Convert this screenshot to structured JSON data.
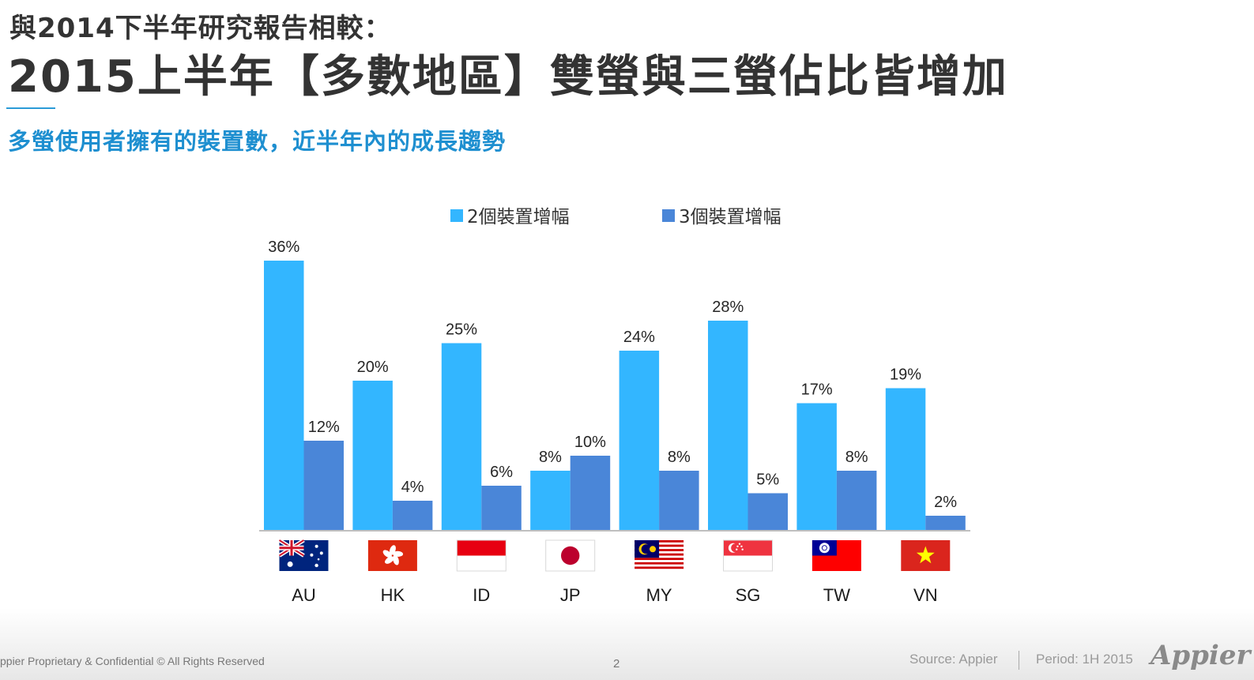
{
  "header": {
    "pre_title": "與2014下半年研究報告相較：",
    "main_title": "2015上半年【多數地區】雙螢與三螢佔比皆增加",
    "subtitle": "多螢使用者擁有的裝置數，近半年內的成長趨勢"
  },
  "chart_data": {
    "type": "bar",
    "categories": [
      "AU",
      "HK",
      "ID",
      "JP",
      "MY",
      "SG",
      "TW",
      "VN"
    ],
    "series": [
      {
        "name": "2個裝置增幅",
        "color": "#33b6ff",
        "values": [
          36,
          20,
          25,
          8,
          24,
          28,
          17,
          19
        ]
      },
      {
        "name": "3個裝置增幅",
        "color": "#4a86d8",
        "values": [
          12,
          4,
          6,
          10,
          8,
          5,
          8,
          2
        ]
      }
    ],
    "value_suffix": "%",
    "ylim": [
      0,
      40
    ],
    "grid": false,
    "legend_position": "top",
    "category_icons": [
      "australia-flag",
      "hong-kong-flag",
      "indonesia-flag",
      "japan-flag",
      "malaysia-flag",
      "singapore-flag",
      "taiwan-flag",
      "vietnam-flag"
    ]
  },
  "footer": {
    "confidential": "ppier Proprietary & Confidential © All Rights Reserved",
    "page_number": "2",
    "source": "Source: Appier",
    "period": "Period: 1H 2015",
    "logo": "Appier"
  }
}
